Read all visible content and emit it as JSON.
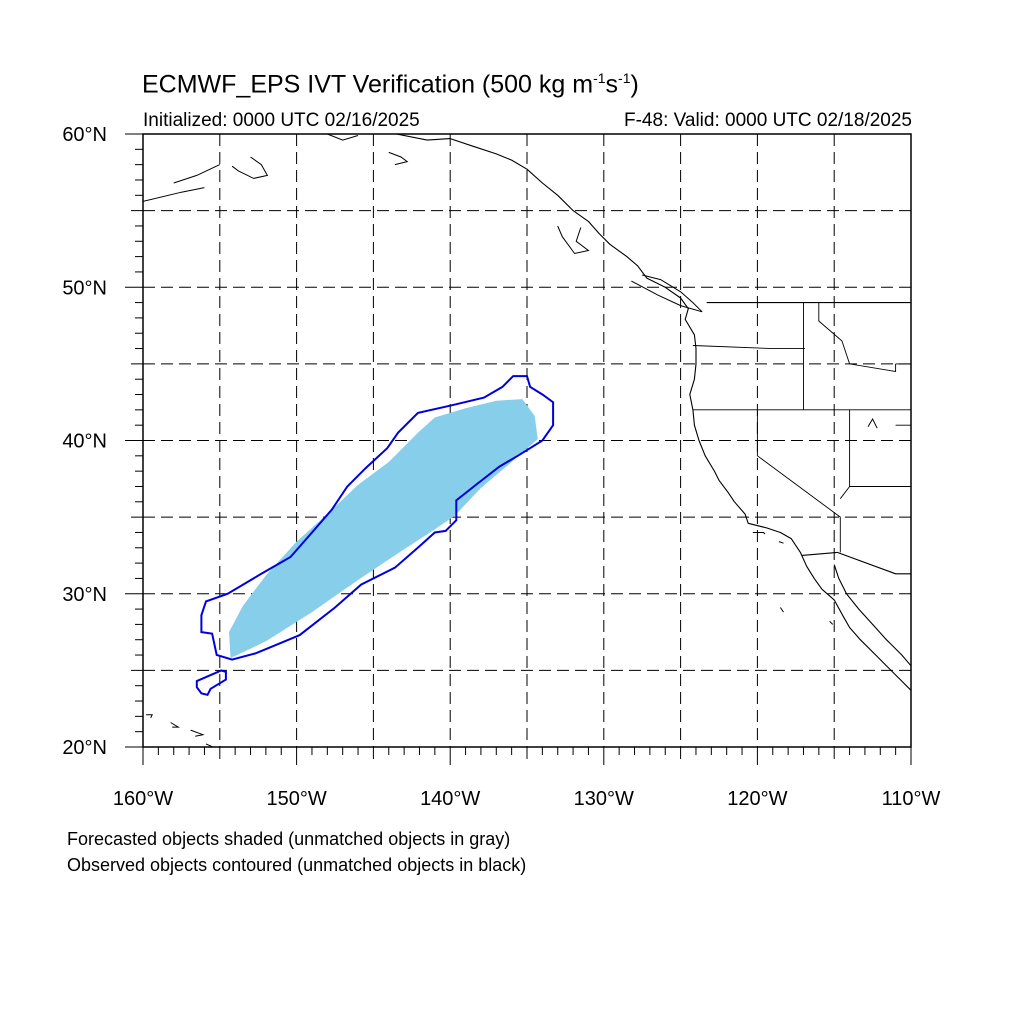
{
  "title": {
    "prefix": "ECMWF_EPS IVT Verification (500 kg m",
    "exp1": "-1",
    "mid": "s",
    "exp2": "-1",
    "suffix": ")"
  },
  "subtitle_left": "Initialized: 0000 UTC 02/16/2025",
  "subtitle_right": "F-48: Valid: 0000 UTC 02/18/2025",
  "notes": [
    "Forecasted objects shaded (unmatched objects in gray)",
    "Observed objects contoured (unmatched objects in black)"
  ],
  "map": {
    "projection": "cylindrical equidistant",
    "lon_range": [
      -160,
      -110
    ],
    "lat_range": [
      20,
      60
    ],
    "lon_labels": [
      {
        "lon": -160,
        "text": "160°W"
      },
      {
        "lon": -150,
        "text": "150°W"
      },
      {
        "lon": -140,
        "text": "140°W"
      },
      {
        "lon": -130,
        "text": "130°W"
      },
      {
        "lon": -120,
        "text": "120°W"
      },
      {
        "lon": -110,
        "text": "110°W"
      }
    ],
    "lat_labels": [
      {
        "lat": 60,
        "text": "60°N"
      },
      {
        "lat": 50,
        "text": "50°N"
      },
      {
        "lat": 40,
        "text": "40°N"
      },
      {
        "lat": 30,
        "text": "30°N"
      },
      {
        "lat": 20,
        "text": "20°N"
      }
    ],
    "grid_lons": [
      -155,
      -150,
      -145,
      -140,
      -135,
      -130,
      -125,
      -120,
      -115
    ],
    "grid_lats": [
      25,
      30,
      35,
      40,
      45,
      50,
      55
    ],
    "colors": {
      "forecast_fill": "#87ceeb",
      "observed_contour": "#0000dd",
      "coastline": "#000000",
      "grid": "#000000"
    },
    "forecast_object": [
      [
        -154.3,
        25.8
      ],
      [
        -152.0,
        26.9
      ],
      [
        -149.0,
        28.8
      ],
      [
        -146.0,
        30.9
      ],
      [
        -143.0,
        32.9
      ],
      [
        -141.0,
        34.2
      ],
      [
        -139.7,
        35.1
      ],
      [
        -138.0,
        36.9
      ],
      [
        -136.0,
        38.6
      ],
      [
        -134.3,
        40.1
      ],
      [
        -134.5,
        41.6
      ],
      [
        -135.3,
        42.7
      ],
      [
        -137.0,
        42.6
      ],
      [
        -139.0,
        42.1
      ],
      [
        -141.0,
        41.5
      ],
      [
        -142.0,
        40.6
      ],
      [
        -144.0,
        38.6
      ],
      [
        -146.0,
        37.1
      ],
      [
        -148.0,
        35.2
      ],
      [
        -150.0,
        33.4
      ],
      [
        -152.0,
        31.2
      ],
      [
        -153.5,
        29.2
      ],
      [
        -154.4,
        27.5
      ]
    ],
    "observed_object": [
      [
        -156.2,
        27.5
      ],
      [
        -155.5,
        27.4
      ],
      [
        -155.2,
        26.0
      ],
      [
        -154.2,
        25.7
      ],
      [
        -152.7,
        26.1
      ],
      [
        -151.5,
        26.6
      ],
      [
        -149.8,
        27.3
      ],
      [
        -147.5,
        29.1
      ],
      [
        -145.8,
        30.6
      ],
      [
        -143.6,
        31.7
      ],
      [
        -142.0,
        33.1
      ],
      [
        -141.0,
        34.0
      ],
      [
        -140.3,
        34.1
      ],
      [
        -139.6,
        34.8
      ],
      [
        -139.6,
        36.1
      ],
      [
        -138.2,
        37.2
      ],
      [
        -136.8,
        38.3
      ],
      [
        -135.6,
        39.0
      ],
      [
        -134.0,
        40.0
      ],
      [
        -133.3,
        41.0
      ],
      [
        -133.3,
        42.5
      ],
      [
        -134.0,
        43.0
      ],
      [
        -134.8,
        43.5
      ],
      [
        -135.0,
        44.2
      ],
      [
        -135.9,
        44.2
      ],
      [
        -136.6,
        43.5
      ],
      [
        -137.8,
        42.8
      ],
      [
        -139.9,
        42.3
      ],
      [
        -142.1,
        41.8
      ],
      [
        -143.4,
        40.5
      ],
      [
        -144.1,
        39.5
      ],
      [
        -145.5,
        38.2
      ],
      [
        -146.7,
        37.0
      ],
      [
        -147.7,
        35.5
      ],
      [
        -149.0,
        34.0
      ],
      [
        -150.4,
        32.4
      ],
      [
        -152.3,
        31.3
      ],
      [
        -154.5,
        30.0
      ],
      [
        -155.9,
        29.5
      ],
      [
        -156.2,
        28.6
      ]
    ],
    "observed_small_object": [
      [
        -156.5,
        24.3
      ],
      [
        -154.9,
        25.0
      ],
      [
        -154.6,
        24.9
      ],
      [
        -154.6,
        24.4
      ],
      [
        -155.6,
        23.8
      ],
      [
        -155.8,
        23.4
      ],
      [
        -156.2,
        23.5
      ],
      [
        -156.5,
        23.9
      ]
    ],
    "coastline_west": [
      [
        -145.0,
        60.0
      ],
      [
        -143.5,
        60.0
      ],
      [
        -141.5,
        59.6
      ],
      [
        -140.0,
        59.7
      ],
      [
        -138.5,
        59.2
      ],
      [
        -137.0,
        58.7
      ],
      [
        -136.0,
        58.3
      ],
      [
        -135.0,
        57.7
      ],
      [
        -134.0,
        56.8
      ],
      [
        -133.0,
        56.0
      ],
      [
        -132.0,
        55.0
      ],
      [
        -131.0,
        54.3
      ],
      [
        -130.3,
        53.5
      ],
      [
        -129.6,
        52.8
      ],
      [
        -128.5,
        52.0
      ],
      [
        -127.8,
        51.4
      ],
      [
        -127.2,
        50.6
      ],
      [
        -126.0,
        50.0
      ],
      [
        -125.0,
        49.3
      ],
      [
        -124.5,
        48.6
      ],
      [
        -124.7,
        47.9
      ],
      [
        -124.1,
        46.9
      ],
      [
        -124.0,
        46.0
      ],
      [
        -124.0,
        45.0
      ],
      [
        -124.1,
        44.0
      ],
      [
        -124.4,
        43.0
      ],
      [
        -124.2,
        42.0
      ],
      [
        -124.1,
        41.0
      ],
      [
        -123.8,
        40.0
      ],
      [
        -123.4,
        39.0
      ],
      [
        -122.8,
        38.0
      ],
      [
        -122.5,
        37.4
      ],
      [
        -121.9,
        36.6
      ],
      [
        -121.5,
        36.0
      ],
      [
        -120.8,
        35.2
      ],
      [
        -120.6,
        34.6
      ],
      [
        -119.4,
        34.3
      ],
      [
        -118.5,
        34.0
      ],
      [
        -117.8,
        33.6
      ],
      [
        -117.2,
        32.7
      ],
      [
        -116.8,
        31.8
      ],
      [
        -116.3,
        31.0
      ],
      [
        -115.8,
        30.3
      ],
      [
        -115.0,
        29.6
      ],
      [
        -114.4,
        28.5
      ],
      [
        -114.0,
        27.8
      ],
      [
        -113.3,
        27.0
      ],
      [
        -112.3,
        26.0
      ],
      [
        -111.6,
        25.3
      ],
      [
        -110.8,
        24.5
      ],
      [
        -110.0,
        23.7
      ]
    ],
    "gulf_coast": [
      [
        -115.0,
        31.9
      ],
      [
        -114.7,
        31.0
      ],
      [
        -114.2,
        30.0
      ],
      [
        -113.4,
        29.0
      ],
      [
        -112.5,
        28.0
      ],
      [
        -111.6,
        27.0
      ],
      [
        -110.6,
        26.0
      ],
      [
        -110.0,
        25.3
      ]
    ],
    "border_canada_us": [
      [
        -123.3,
        49.0
      ],
      [
        -110.0,
        49.0
      ]
    ],
    "border_us_mexico": [
      [
        -117.1,
        32.5
      ],
      [
        -114.8,
        32.7
      ],
      [
        -111.0,
        31.3
      ],
      [
        -110.0,
        31.3
      ]
    ],
    "state_lines": [
      [
        [
          -124.2,
          46.2
        ],
        [
          -119.0,
          46.0
        ],
        [
          -116.9,
          46.0
        ]
      ],
      [
        [
          -117.0,
          49.0
        ],
        [
          -117.0,
          46.0
        ]
      ],
      [
        [
          -116.0,
          49.0
        ],
        [
          -116.0,
          47.8
        ],
        [
          -114.5,
          46.5
        ],
        [
          -114.0,
          45.0
        ],
        [
          -111.0,
          44.5
        ],
        [
          -111.0,
          45.0
        ]
      ],
      [
        [
          -124.2,
          42.0
        ],
        [
          -110.0,
          42.0
        ]
      ],
      [
        [
          -117.0,
          46.0
        ],
        [
          -117.0,
          42.0
        ]
      ],
      [
        [
          -120.0,
          42.0
        ],
        [
          -120.0,
          39.0
        ],
        [
          -114.6,
          35.0
        ],
        [
          -114.6,
          32.7
        ]
      ],
      [
        [
          -114.0,
          42.0
        ],
        [
          -114.0,
          37.0
        ],
        [
          -114.6,
          36.2
        ]
      ],
      [
        [
          -114.0,
          37.0
        ],
        [
          -110.0,
          37.0
        ]
      ],
      [
        [
          -111.0,
          45.0
        ],
        [
          -110.0,
          45.0
        ],
        [
          -110.0,
          41.0
        ],
        [
          -111.0,
          41.0
        ]
      ]
    ],
    "islands": [
      [
        [
          -144.0,
          58.8
        ],
        [
          -143.2,
          58.5
        ],
        [
          -142.8,
          58.2
        ],
        [
          -143.6,
          58.0
        ]
      ],
      [
        [
          -148.0,
          60.0
        ],
        [
          -147.0,
          59.6
        ],
        [
          -146.0,
          59.9
        ]
      ],
      [
        [
          -153.0,
          58.5
        ],
        [
          -152.3,
          58.0
        ],
        [
          -151.9,
          57.3
        ],
        [
          -152.8,
          57.1
        ],
        [
          -153.8,
          57.6
        ],
        [
          -154.2,
          57.9
        ]
      ],
      [
        [
          -158.0,
          56.8
        ],
        [
          -156.5,
          57.3
        ],
        [
          -155.0,
          58.0
        ]
      ],
      [
        [
          -160.0,
          55.6
        ],
        [
          -157.5,
          56.2
        ],
        [
          -156.0,
          56.5
        ]
      ],
      [
        [
          -131.5,
          53.9
        ],
        [
          -131.8,
          53.0
        ],
        [
          -131.0,
          52.4
        ],
        [
          -131.9,
          52.2
        ],
        [
          -132.7,
          53.3
        ],
        [
          -133.0,
          54.0
        ]
      ],
      [
        [
          -127.5,
          50.8
        ],
        [
          -126.3,
          50.5
        ],
        [
          -125.0,
          49.7
        ],
        [
          -124.2,
          49.0
        ],
        [
          -123.6,
          48.4
        ],
        [
          -125.0,
          48.8
        ],
        [
          -126.5,
          49.5
        ],
        [
          -128.2,
          50.4
        ]
      ],
      [
        [
          -112.8,
          40.9
        ],
        [
          -112.5,
          41.4
        ],
        [
          -112.2,
          40.8
        ]
      ],
      [
        [
          -120.3,
          34.0
        ],
        [
          -119.6,
          34.0
        ],
        [
          -119.5,
          33.9
        ]
      ],
      [
        [
          -118.6,
          33.4
        ],
        [
          -118.3,
          33.3
        ]
      ],
      [
        [
          -118.5,
          29.1
        ],
        [
          -118.3,
          28.8
        ]
      ],
      [
        [
          -115.3,
          28.2
        ],
        [
          -115.1,
          28.0
        ]
      ],
      [
        [
          -159.8,
          22.1
        ],
        [
          -159.4,
          22.1
        ],
        [
          -159.5,
          21.9
        ]
      ],
      [
        [
          -158.2,
          21.6
        ],
        [
          -157.7,
          21.3
        ],
        [
          -158.1,
          21.3
        ]
      ],
      [
        [
          -156.9,
          21.1
        ],
        [
          -156.1,
          20.8
        ],
        [
          -156.6,
          20.7
        ]
      ],
      [
        [
          -155.9,
          20.2
        ],
        [
          -155.0,
          19.8
        ],
        [
          -155.8,
          19.0
        ]
      ]
    ]
  }
}
